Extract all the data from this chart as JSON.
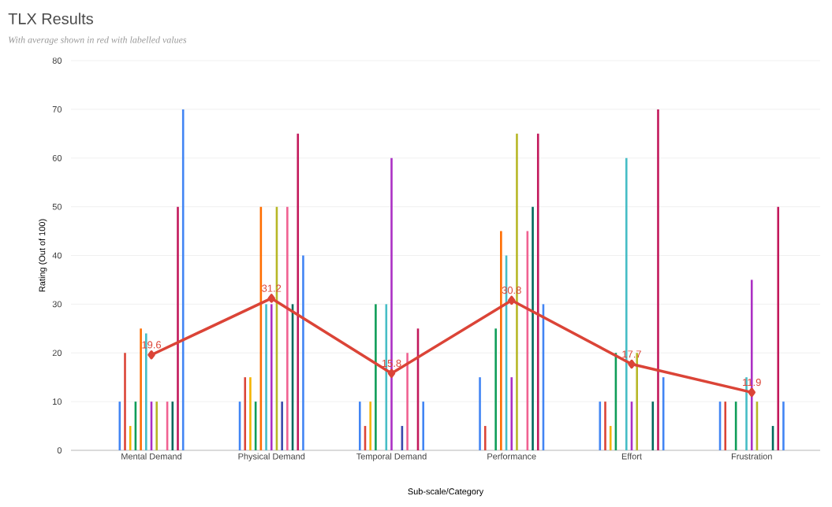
{
  "chart_data": {
    "type": "bar",
    "title": "TLX Results",
    "subtitle": "With average shown in red with labelled values",
    "xlabel": "Sub-scale/Category",
    "ylabel": "Rating (Out of 100)",
    "categories": [
      "Mental Demand",
      "Physical Demand",
      "Temporal Demand",
      "Performance",
      "Effort",
      "Frustration"
    ],
    "series": [
      {
        "color": "#4285f4",
        "values": [
          10,
          10,
          10,
          15,
          10,
          10
        ]
      },
      {
        "color": "#db4437",
        "values": [
          20,
          15,
          5,
          5,
          10,
          10
        ]
      },
      {
        "color": "#f4b400",
        "values": [
          5,
          15,
          10,
          0,
          5,
          0
        ]
      },
      {
        "color": "#0f9d58",
        "values": [
          10,
          10,
          30,
          25,
          20,
          10
        ]
      },
      {
        "color": "#ff6d00",
        "values": [
          25,
          50,
          0,
          45,
          0,
          0
        ]
      },
      {
        "color": "#46bdc6",
        "values": [
          24,
          30,
          30,
          40,
          60,
          15
        ]
      },
      {
        "color": "#ab30c4",
        "values": [
          10,
          30,
          60,
          15,
          10,
          35
        ]
      },
      {
        "color": "#b7b726",
        "values": [
          10,
          50,
          0,
          65,
          20,
          10
        ]
      },
      {
        "color": "#3949ab",
        "values": [
          0,
          10,
          5,
          0,
          0,
          0
        ]
      },
      {
        "color": "#f06292",
        "values": [
          10,
          50,
          20,
          45,
          0,
          0
        ]
      },
      {
        "color": "#00695c",
        "values": [
          10,
          30,
          0,
          50,
          10,
          5
        ]
      },
      {
        "color": "#c2185b",
        "values": [
          50,
          65,
          25,
          65,
          70,
          50
        ]
      },
      {
        "color": "#4285f4",
        "values": [
          70,
          40,
          10,
          30,
          15,
          10
        ]
      },
      {
        "type": "line",
        "color": "#db4437",
        "marker": "diamond",
        "values": [
          19.6,
          31.2,
          15.8,
          30.8,
          17.7,
          11.9
        ],
        "value_labels": [
          "19.6",
          "31.2",
          "15.8",
          "30.8",
          "17.7",
          "11.9"
        ]
      }
    ],
    "ylim": [
      0,
      80
    ],
    "yticks": [
      0,
      10,
      20,
      30,
      40,
      50,
      60,
      70,
      80
    ],
    "grid": "y"
  }
}
